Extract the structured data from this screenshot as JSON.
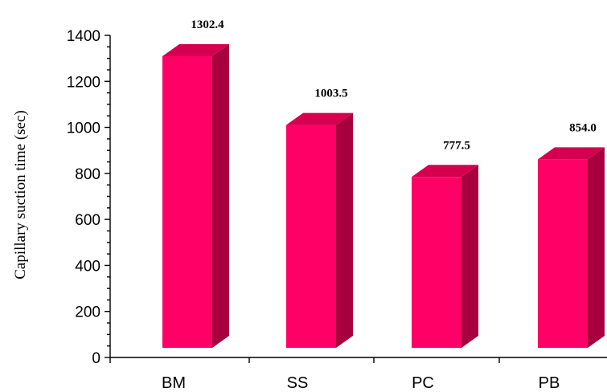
{
  "chart_data": {
    "type": "bar",
    "title": "",
    "xlabel": "",
    "ylabel": "Capillary suction time (sec)",
    "categories": [
      "BM",
      "SS",
      "PC",
      "PB"
    ],
    "values": [
      1302.4,
      1003.5,
      777.5,
      854.0
    ],
    "value_labels": [
      "1302.4",
      "1003.5",
      "777.5",
      "854.0"
    ],
    "ylim": [
      0,
      1400
    ],
    "yticks": [
      0,
      200,
      400,
      600,
      800,
      1000,
      1200,
      1400
    ],
    "ytick_labels": [
      "0",
      "200",
      "400",
      "600",
      "800",
      "1000",
      "1200",
      "1400"
    ],
    "grid": false,
    "legend": false,
    "style": "3d-bar",
    "colors": {
      "front": "#ff0066",
      "side": "#a8003f",
      "top": "#d4004f",
      "axis": "#000000"
    }
  }
}
